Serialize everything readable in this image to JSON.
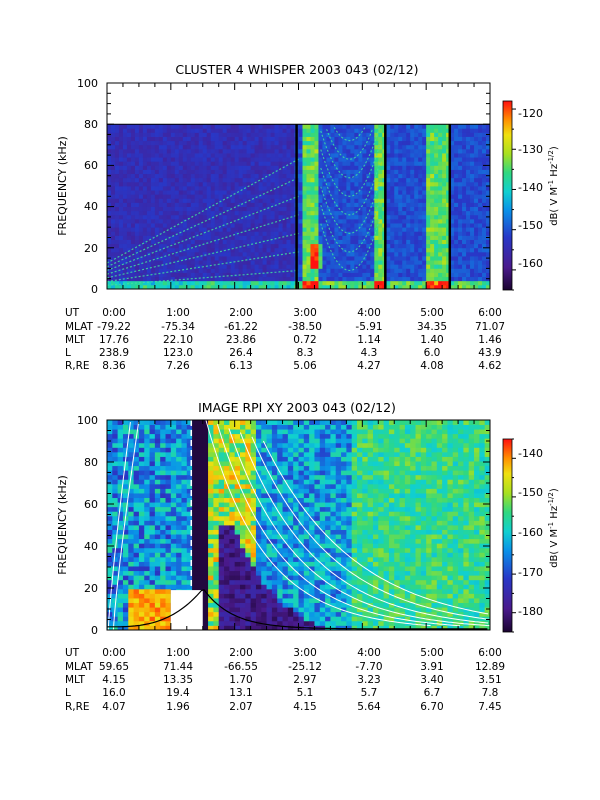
{
  "chart_data": [
    {
      "type": "heatmap",
      "title": "CLUSTER 4 WHISPER 2003 043 (02/12)",
      "ylabel": "FREQUENCY (kHz)",
      "ylim": [
        0,
        100
      ],
      "yticks": [
        "0",
        "20",
        "40",
        "60",
        "80",
        "100"
      ],
      "xlim_hours": [
        0,
        6
      ],
      "data_upper_freq_khz": 80,
      "colorbar": {
        "label_parts": [
          "dB( V M",
          "-1",
          " Hz",
          "-1/2",
          ")"
        ],
        "range": [
          -165,
          -118
        ],
        "ticks": [
          "-120",
          "-130",
          "-140",
          "-150",
          "-160"
        ]
      },
      "data_gaps_hours": [
        2.97,
        4.36,
        5.37
      ],
      "bright_bands_hours": [
        [
          3.05,
          3.3
        ],
        [
          4.15,
          4.35
        ],
        [
          5.0,
          5.35
        ]
      ],
      "ephemeris": {
        "labels": [
          "UT",
          "MLAT",
          "MLT",
          "L",
          "R,RE"
        ],
        "columns": [
          [
            "0:00",
            "-79.22",
            "17.76",
            "238.9",
            "8.36"
          ],
          [
            "1:00",
            "-75.34",
            "22.10",
            "123.0",
            "7.26"
          ],
          [
            "2:00",
            "-61.22",
            "23.86",
            "26.4",
            "6.13"
          ],
          [
            "3:00",
            "-38.50",
            "0.72",
            "8.3",
            "5.06"
          ],
          [
            "4:00",
            "-5.91",
            "1.14",
            "4.3",
            "4.27"
          ],
          [
            "5:00",
            "34.35",
            "1.40",
            "6.0",
            "4.08"
          ],
          [
            "6:00",
            "71.07",
            "1.46",
            "43.9",
            "4.62"
          ]
        ]
      }
    },
    {
      "type": "heatmap",
      "title": "IMAGE RPI XY 2003 043 (02/12)",
      "ylabel": "FREQUENCY (kHz)",
      "ylim": [
        0,
        100
      ],
      "yticks": [
        "0",
        "20",
        "40",
        "60",
        "80",
        "100"
      ],
      "xlim_hours": [
        0,
        6
      ],
      "colorbar": {
        "label_parts": [
          "dB( V M",
          "-1",
          " Hz",
          "-1/2",
          ")"
        ],
        "range": [
          -185,
          -135
        ],
        "ticks": [
          "-140",
          "-150",
          "-160",
          "-170",
          "-180"
        ]
      },
      "white_block": {
        "hours": [
          1.0,
          1.5
        ],
        "freq_khz": [
          0,
          19
        ]
      },
      "black_gap_hours": [
        1.28,
        1.52
      ],
      "ephemeris": {
        "labels": [
          "UT",
          "MLAT",
          "MLT",
          "L",
          "R,RE"
        ],
        "columns": [
          [
            "0:00",
            "59.65",
            "4.15",
            "16.0",
            "4.07"
          ],
          [
            "1:00",
            "71.44",
            "13.35",
            "19.4",
            "1.96"
          ],
          [
            "2:00",
            "-66.55",
            "1.70",
            "13.1",
            "2.07"
          ],
          [
            "3:00",
            "-25.12",
            "2.97",
            "5.1",
            "4.15"
          ],
          [
            "4:00",
            "-7.70",
            "3.23",
            "5.7",
            "5.64"
          ],
          [
            "5:00",
            "3.91",
            "3.40",
            "6.7",
            "6.70"
          ],
          [
            "6:00",
            "12.89",
            "3.51",
            "7.8",
            "7.45"
          ]
        ]
      }
    }
  ]
}
